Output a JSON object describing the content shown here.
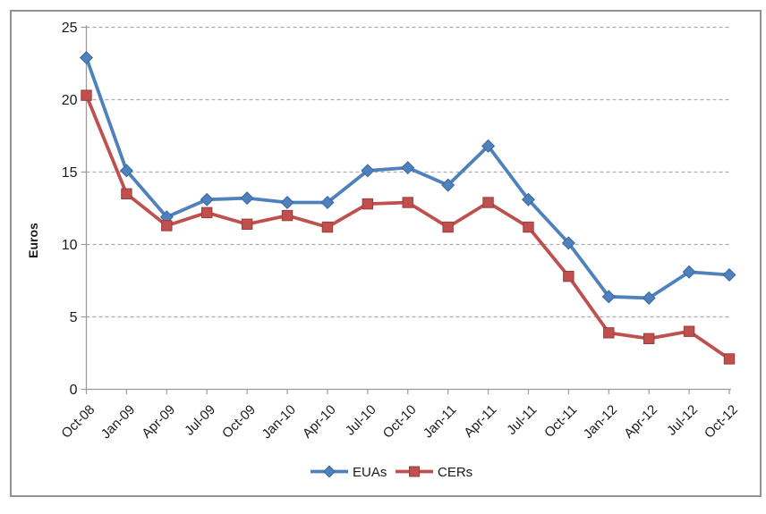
{
  "figure": {
    "background": "#ffffff",
    "border_color": "#909390"
  },
  "colors": {
    "axis": "#9b9b9b",
    "gridline": "#ababab",
    "text": "#1a1a1a"
  },
  "chart_data": {
    "type": "line",
    "title": "",
    "xlabel": "",
    "ylabel": "Euros",
    "ylim": [
      0,
      25
    ],
    "yticks": [
      0,
      5,
      10,
      15,
      20,
      25
    ],
    "grid": "horizontal dashed gridlines at every 5 units",
    "legend_position": "bottom-center",
    "categories": [
      "Oct-08",
      "Jan-09",
      "Apr-09",
      "Jul-09",
      "Oct-09",
      "Jan-10",
      "Apr-10",
      "Jul-10",
      "Oct-10",
      "Jan-11",
      "Apr-11",
      "Jul-11",
      "Oct-11",
      "Jan-12",
      "Apr-12",
      "Jul-12",
      "Oct-12"
    ],
    "series": [
      {
        "name": "EUAs",
        "color": "#4F81BD",
        "marker": "diamond",
        "marker_edge": "#38689e",
        "values": [
          22.9,
          15.1,
          11.9,
          13.1,
          13.2,
          12.9,
          12.9,
          15.1,
          15.3,
          14.1,
          16.8,
          13.1,
          10.1,
          6.4,
          6.3,
          8.1,
          7.9
        ]
      },
      {
        "name": "CERs",
        "color": "#C0504D",
        "marker": "square",
        "marker_edge": "#9c3c39",
        "values": [
          20.3,
          13.5,
          11.3,
          12.2,
          11.4,
          12.0,
          11.2,
          12.8,
          12.9,
          11.2,
          12.9,
          11.2,
          7.8,
          3.9,
          3.5,
          4.0,
          2.1
        ]
      }
    ]
  }
}
